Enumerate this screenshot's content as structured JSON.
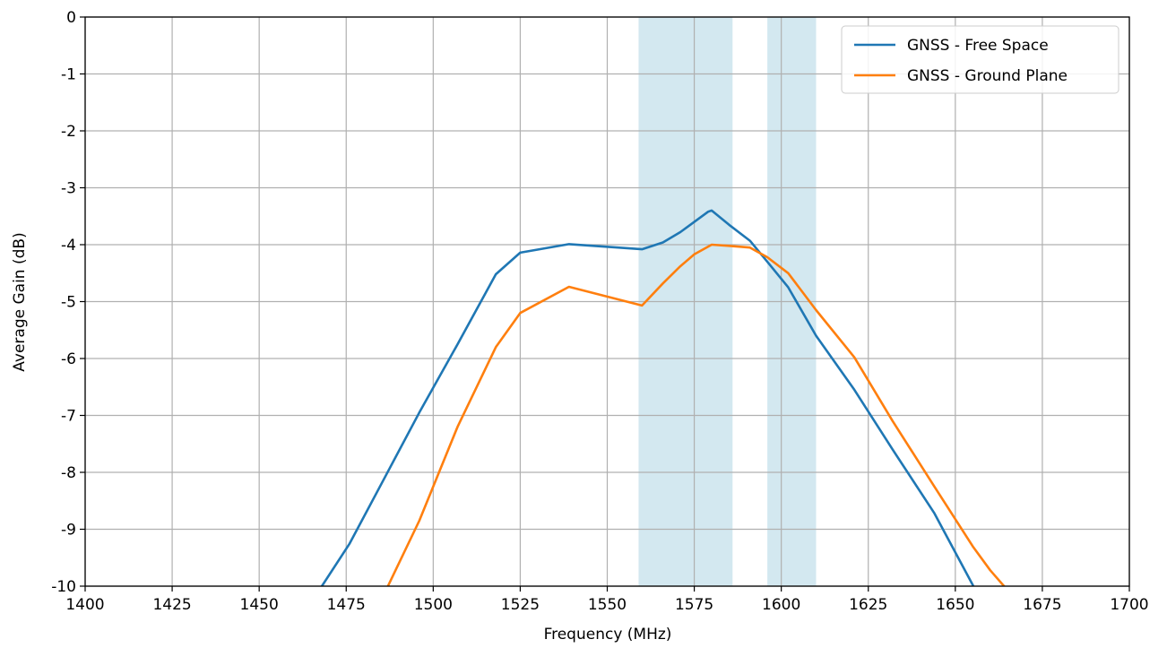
{
  "chart_data": {
    "type": "line",
    "title": "",
    "xlabel": "Frequency (MHz)",
    "ylabel": "Average Gain (dB)",
    "xlim": [
      1400,
      1700
    ],
    "ylim": [
      -10,
      0
    ],
    "x_ticks": [
      1400,
      1425,
      1450,
      1475,
      1500,
      1525,
      1550,
      1575,
      1600,
      1625,
      1650,
      1675,
      1700
    ],
    "y_ticks": [
      0,
      -1,
      -2,
      -3,
      -4,
      -5,
      -6,
      -7,
      -8,
      -9,
      -10
    ],
    "grid": true,
    "legend_position": "top-right",
    "shaded_bands": [
      {
        "x_start": 1559,
        "x_end": 1586,
        "color": "#d3e8f0"
      },
      {
        "x_start": 1596,
        "x_end": 1610,
        "color": "#d3e8f0"
      }
    ],
    "series": [
      {
        "name": "GNSS - Free Space",
        "color": "#1f77b4",
        "points": [
          [
            1468,
            -10.0
          ],
          [
            1476,
            -9.25
          ],
          [
            1486,
            -8.1
          ],
          [
            1496,
            -6.95
          ],
          [
            1507,
            -5.75
          ],
          [
            1518,
            -4.52
          ],
          [
            1525,
            -4.14
          ],
          [
            1539,
            -3.99
          ],
          [
            1560,
            -4.08
          ],
          [
            1566,
            -3.96
          ],
          [
            1571,
            -3.78
          ],
          [
            1575,
            -3.6
          ],
          [
            1579,
            -3.42
          ],
          [
            1580,
            -3.4
          ],
          [
            1585,
            -3.65
          ],
          [
            1591,
            -3.93
          ],
          [
            1596,
            -4.3
          ],
          [
            1602,
            -4.75
          ],
          [
            1610,
            -5.6
          ],
          [
            1621,
            -6.55
          ],
          [
            1632,
            -7.6
          ],
          [
            1644,
            -8.72
          ],
          [
            1655,
            -9.98
          ]
        ]
      },
      {
        "name": "GNSS - Ground Plane",
        "color": "#ff7f0e",
        "points": [
          [
            1487,
            -10.0
          ],
          [
            1496,
            -8.85
          ],
          [
            1507,
            -7.2
          ],
          [
            1518,
            -5.8
          ],
          [
            1525,
            -5.2
          ],
          [
            1539,
            -4.74
          ],
          [
            1560,
            -5.07
          ],
          [
            1566,
            -4.68
          ],
          [
            1571,
            -4.38
          ],
          [
            1575,
            -4.17
          ],
          [
            1580,
            -4.0
          ],
          [
            1585,
            -4.02
          ],
          [
            1591,
            -4.05
          ],
          [
            1596,
            -4.22
          ],
          [
            1602,
            -4.5
          ],
          [
            1610,
            -5.15
          ],
          [
            1621,
            -5.98
          ],
          [
            1632,
            -7.1
          ],
          [
            1644,
            -8.25
          ],
          [
            1655,
            -9.3
          ],
          [
            1660,
            -9.72
          ],
          [
            1664,
            -10.0
          ]
        ]
      }
    ]
  }
}
